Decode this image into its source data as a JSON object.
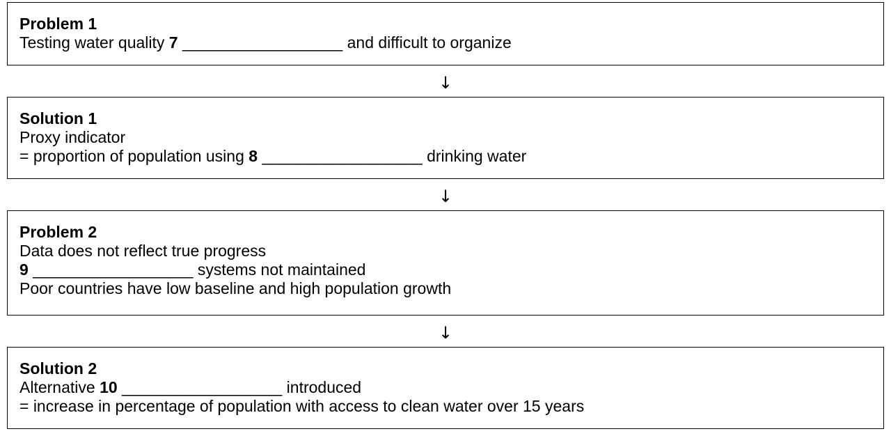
{
  "blank": "__________________",
  "boxes": [
    {
      "title": "Problem 1",
      "line1_pre": "Testing water quality ",
      "line1_num": "7",
      "line1_post": " and difficult to organize"
    },
    {
      "title": "Solution 1",
      "line1": "Proxy indicator",
      "line2_pre": "= proportion of population using ",
      "line2_num": "8",
      "line2_post": " drinking water"
    },
    {
      "title": "Problem 2",
      "line1": "Data does not reflect true progress",
      "line2_num": "9",
      "line2_post": " systems not maintained",
      "line3": "Poor countries have low baseline and high population growth"
    },
    {
      "title": "Solution 2",
      "line1_pre": "Alternative ",
      "line1_num": "10",
      "line1_post": " introduced",
      "line2": "= increase in percentage of population with access to clean water over 15 years"
    }
  ],
  "arrow_symbol": "↓"
}
